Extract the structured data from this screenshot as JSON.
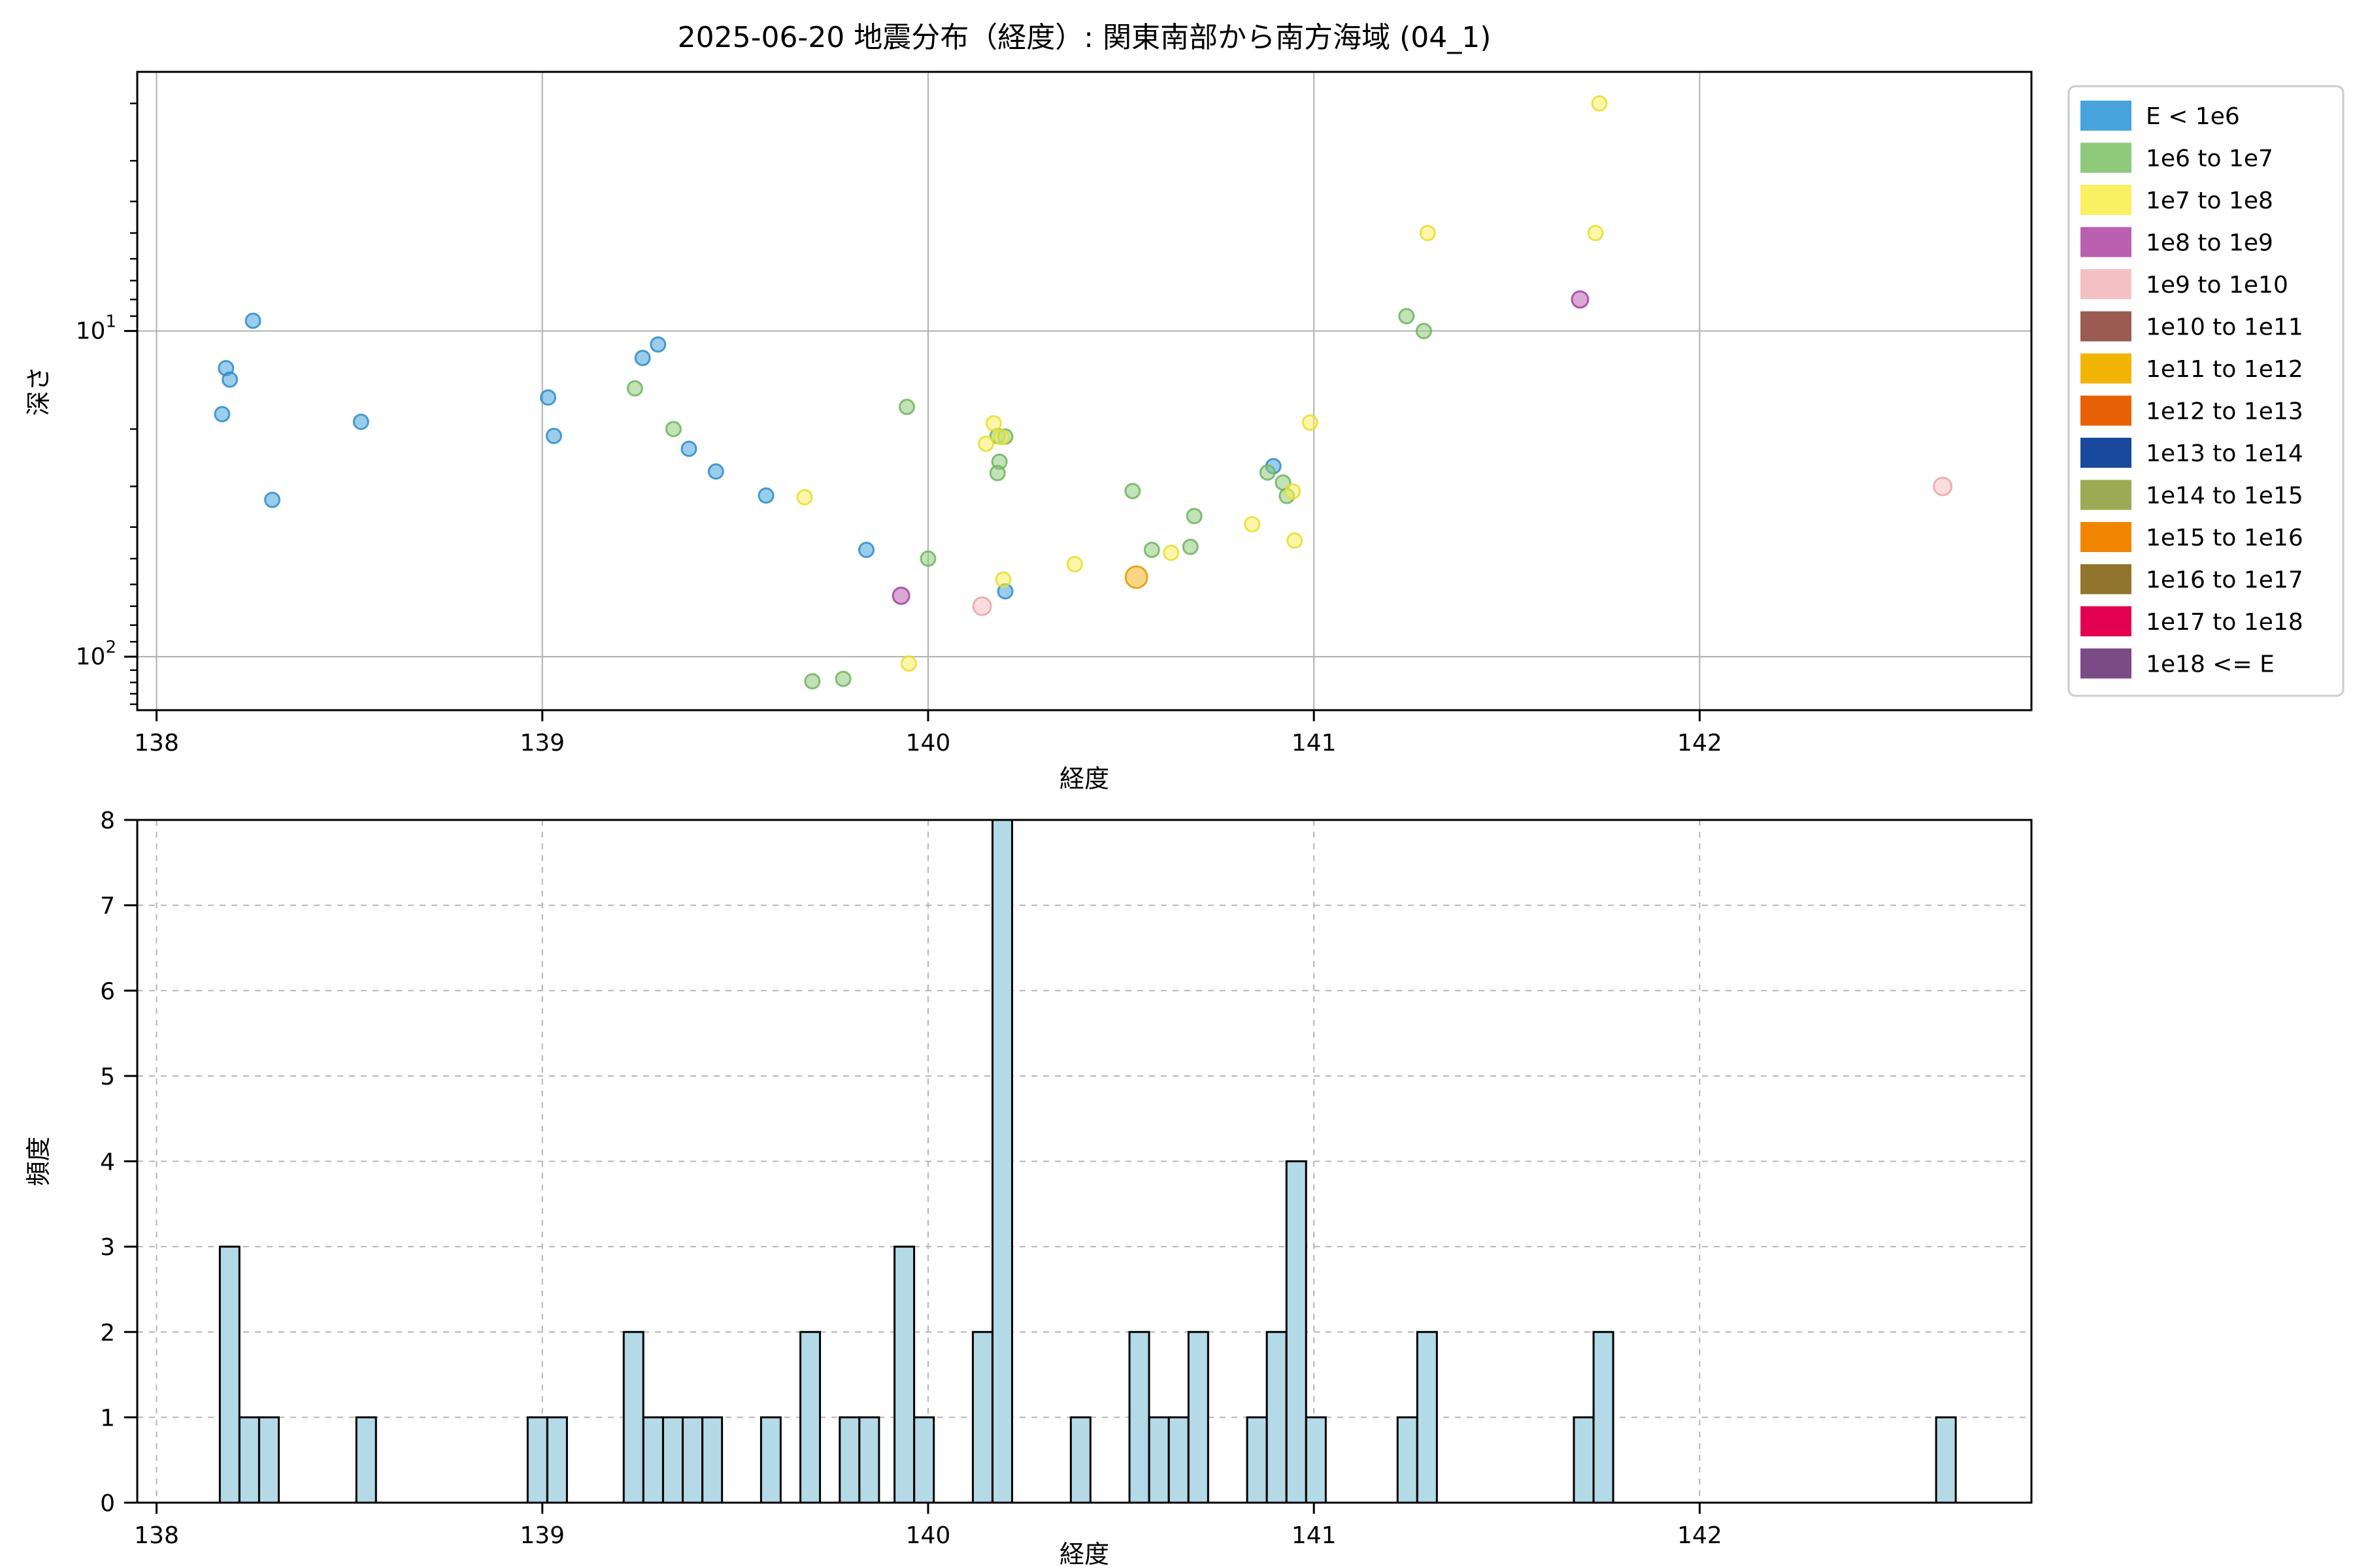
{
  "title": "2025-06-20 地震分布（経度）: 関東南部から南方海域 (04_1)",
  "chart_data": [
    {
      "type": "scatter",
      "title": "2025-06-20 地震分布（経度）: 関東南部から南方海域 (04_1)",
      "xlabel": "経度",
      "ylabel": "深さ",
      "x_scale": "linear",
      "y_scale": "log",
      "y_inverted": true,
      "xlim": [
        137.95,
        142.86
      ],
      "ylim": [
        1.6,
        146
      ],
      "x_ticks": [
        138,
        139,
        140,
        141,
        142
      ],
      "y_major_ticks": [
        10,
        100
      ],
      "y_major_tick_labels": [
        "10¹",
        "10²"
      ],
      "grid": "solid",
      "legend_position": "upper right outside",
      "legend": [
        {
          "label": "E < 1e6",
          "color": "#47a4dc"
        },
        {
          "label": "1e6 to 1e7",
          "color": "#8fca7c"
        },
        {
          "label": "1e7 to 1e8",
          "color": "#f9f161"
        },
        {
          "label": "1e8 to 1e9",
          "color": "#b961b0"
        },
        {
          "label": "1e9 to 1e10",
          "color": "#f5c0c4"
        },
        {
          "label": "1e10 to 1e11",
          "color": "#9b5b52"
        },
        {
          "label": "1e11 to 1e12",
          "color": "#f3b505"
        },
        {
          "label": "1e12 to 1e13",
          "color": "#e76104"
        },
        {
          "label": "1e13 to 1e14",
          "color": "#19499c"
        },
        {
          "label": "1e14 to 1e15",
          "color": "#9cab53"
        },
        {
          "label": "1e15 to 1e16",
          "color": "#f28502"
        },
        {
          "label": "1e16 to 1e17",
          "color": "#92752d"
        },
        {
          "label": "1e17 to 1e18",
          "color": "#e30050"
        },
        {
          "label": "1e18 <= E",
          "color": "#7b4b85"
        }
      ],
      "series": [
        {
          "name": "E < 1e6",
          "color": "#47a4dc",
          "edge": "#2e8cc7",
          "radius": 11,
          "points": [
            [
              138.17,
              18
            ],
            [
              138.18,
              13.0
            ],
            [
              138.19,
              14.1
            ],
            [
              138.25,
              9.3
            ],
            [
              138.3,
              33
            ],
            [
              138.53,
              19
            ],
            [
              139.015,
              16
            ],
            [
              139.03,
              21
            ],
            [
              139.26,
              12.1
            ],
            [
              139.3,
              11.0
            ],
            [
              139.38,
              23
            ],
            [
              139.45,
              27
            ],
            [
              139.58,
              32
            ],
            [
              139.84,
              47
            ],
            [
              140.2,
              63
            ],
            [
              140.895,
              26
            ]
          ]
        },
        {
          "name": "1e6 to 1e7",
          "color": "#8fca7c",
          "edge": "#6fb45e",
          "radius": 11,
          "points": [
            [
              139.24,
              15.0
            ],
            [
              139.34,
              20
            ],
            [
              139.7,
              119
            ],
            [
              139.78,
              117
            ],
            [
              139.945,
              17.1
            ],
            [
              140.0,
              50
            ],
            [
              140.18,
              21.0
            ],
            [
              140.2,
              21.1
            ],
            [
              140.185,
              25.2
            ],
            [
              140.18,
              27.3
            ],
            [
              140.53,
              31
            ],
            [
              140.58,
              47
            ],
            [
              140.68,
              46
            ],
            [
              140.69,
              37
            ],
            [
              140.88,
              27.2
            ],
            [
              140.92,
              29.2
            ],
            [
              140.93,
              32.1
            ],
            [
              141.24,
              9.0
            ],
            [
              141.285,
              10.0
            ]
          ]
        },
        {
          "name": "1e7 to 1e8",
          "color": "#f9f161",
          "edge": "#e8dd30",
          "radius": 11,
          "points": [
            [
              139.68,
              32.4
            ],
            [
              139.95,
              105
            ],
            [
              140.15,
              22.2
            ],
            [
              140.17,
              19.2
            ],
            [
              140.19,
              21.2
            ],
            [
              140.195,
              58
            ],
            [
              140.38,
              52
            ],
            [
              140.63,
              48
            ],
            [
              140.84,
              39.2
            ],
            [
              140.945,
              31.1
            ],
            [
              140.95,
              44
            ],
            [
              140.99,
              19.1
            ],
            [
              141.295,
              5.0
            ],
            [
              141.73,
              5.0
            ],
            [
              141.74,
              2.0
            ]
          ]
        },
        {
          "name": "1e8 to 1e9",
          "color": "#b961b0",
          "edge": "#a43f9b",
          "radius": 12.5,
          "points": [
            [
              139.93,
              65
            ],
            [
              141.69,
              8.0
            ]
          ]
        },
        {
          "name": "1e9 to 1e10",
          "color": "#f5c0c4",
          "edge": "#eda3a9",
          "radius": 13.5,
          "points": [
            [
              140.14,
              70
            ],
            [
              142.63,
              30
            ]
          ]
        },
        {
          "name": "1e11 to 1e12",
          "color": "#f4b41e",
          "edge": "#de9b00",
          "radius": 16.5,
          "points": [
            [
              140.54,
              57
            ]
          ]
        }
      ]
    },
    {
      "type": "histogram",
      "xlabel": "経度",
      "ylabel": "頻度",
      "xlim": [
        137.95,
        142.86
      ],
      "ylim": [
        0,
        8
      ],
      "x_ticks": [
        138,
        139,
        140,
        141,
        142
      ],
      "y_ticks": [
        0,
        1,
        2,
        3,
        4,
        5,
        6,
        7,
        8
      ],
      "grid": "dashed",
      "bar_fill": "#b4d9e7",
      "bar_edge": "#000000",
      "bin_width": 0.0508,
      "bars": [
        {
          "x": 138.164,
          "count": 3
        },
        {
          "x": 138.215,
          "count": 1
        },
        {
          "x": 138.266,
          "count": 1
        },
        {
          "x": 138.518,
          "count": 1
        },
        {
          "x": 138.962,
          "count": 1
        },
        {
          "x": 139.013,
          "count": 1
        },
        {
          "x": 139.211,
          "count": 2
        },
        {
          "x": 139.262,
          "count": 1
        },
        {
          "x": 139.313,
          "count": 1
        },
        {
          "x": 139.364,
          "count": 1
        },
        {
          "x": 139.415,
          "count": 1
        },
        {
          "x": 139.567,
          "count": 1
        },
        {
          "x": 139.669,
          "count": 2
        },
        {
          "x": 139.771,
          "count": 1
        },
        {
          "x": 139.822,
          "count": 1
        },
        {
          "x": 139.913,
          "count": 3
        },
        {
          "x": 139.964,
          "count": 1
        },
        {
          "x": 140.116,
          "count": 2
        },
        {
          "x": 140.167,
          "count": 8
        },
        {
          "x": 140.37,
          "count": 1
        },
        {
          "x": 140.522,
          "count": 2
        },
        {
          "x": 140.573,
          "count": 1
        },
        {
          "x": 140.624,
          "count": 1
        },
        {
          "x": 140.675,
          "count": 2
        },
        {
          "x": 140.827,
          "count": 1
        },
        {
          "x": 140.878,
          "count": 2
        },
        {
          "x": 140.929,
          "count": 4
        },
        {
          "x": 140.98,
          "count": 1
        },
        {
          "x": 141.217,
          "count": 1
        },
        {
          "x": 141.268,
          "count": 2
        },
        {
          "x": 141.674,
          "count": 1
        },
        {
          "x": 141.725,
          "count": 2
        },
        {
          "x": 142.613,
          "count": 1
        }
      ]
    }
  ]
}
